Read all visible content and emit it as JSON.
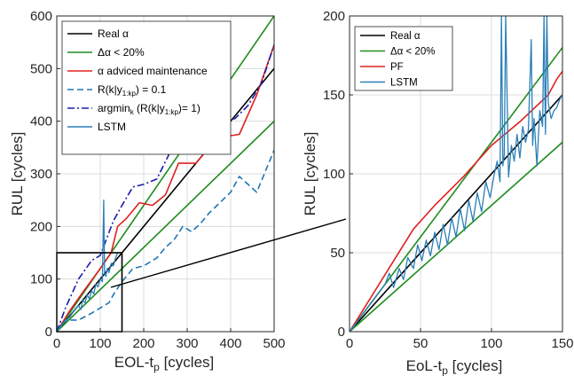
{
  "chart_data": [
    {
      "type": "line",
      "xlabel": "EOL-t",
      "xlabel_sub": "p",
      "xlabel_unit": " [cycles]",
      "ylabel": "RUL [cycles]",
      "xlim": [
        0,
        500
      ],
      "ylim": [
        0,
        600
      ],
      "xticks": [
        "0",
        "100",
        "200",
        "300",
        "400",
        "500"
      ],
      "yticks": [
        "0",
        "100",
        "200",
        "300",
        "400",
        "500",
        "600"
      ],
      "grid": true,
      "legend_position": "top-left",
      "zoom_box": {
        "x": [
          0,
          150
        ],
        "y": [
          0,
          150
        ]
      },
      "series": [
        {
          "name": "Real α",
          "color": "#000000",
          "style": "solid",
          "x": [
            0,
            500
          ],
          "y": [
            0,
            500
          ]
        },
        {
          "name": "Δα < 20%",
          "color": "#1e8c1e",
          "style": "solid",
          "x": [
            0,
            500
          ],
          "y": [
            0,
            600
          ]
        },
        {
          "name": "",
          "color": "#1e8c1e",
          "style": "solid",
          "x": [
            0,
            500
          ],
          "y": [
            0,
            400
          ]
        },
        {
          "name": "α adviced maintenance",
          "color": "#e0201e",
          "style": "solid",
          "x": [
            0,
            30,
            60,
            100,
            125,
            140,
            160,
            190,
            220,
            250,
            280,
            320,
            350,
            380,
            420,
            460,
            500
          ],
          "y": [
            0,
            40,
            75,
            120,
            150,
            200,
            215,
            245,
            240,
            260,
            320,
            320,
            350,
            370,
            375,
            450,
            545
          ]
        },
        {
          "name": "R(k|y",
          "name_sub": "1:kp",
          "name_tail": ") = 0.1",
          "color": "#1f77b4",
          "style": "dashed",
          "x": [
            0,
            20,
            50,
            80,
            100,
            110,
            120,
            130,
            150,
            175,
            200,
            230,
            250,
            270,
            290,
            310,
            330,
            350,
            375,
            400,
            420,
            440,
            460,
            480,
            500
          ],
          "y": [
            0,
            22,
            22,
            35,
            45,
            50,
            55,
            70,
            95,
            120,
            125,
            140,
            160,
            175,
            200,
            190,
            205,
            225,
            245,
            265,
            295,
            280,
            265,
            305,
            345
          ]
        },
        {
          "name": "argmin",
          "name_sub": "k",
          "name_tail": " (R(k|y",
          "name_sub2": "1:kp",
          "name_tail2": ")= 1)",
          "color": "#1a1aa8",
          "style": "dashdot",
          "x": [
            0,
            20,
            50,
            80,
            100,
            130,
            150,
            175,
            200,
            230,
            260,
            290,
            320,
            350,
            380,
            410,
            440,
            470,
            500
          ],
          "y": [
            0,
            45,
            100,
            135,
            145,
            210,
            240,
            275,
            280,
            290,
            340,
            375,
            370,
            385,
            400,
            405,
            430,
            470,
            545
          ]
        },
        {
          "name": "LSTM",
          "color": "#2b7fb8",
          "style": "solid",
          "x": [
            0,
            10,
            20,
            30,
            40,
            50,
            55,
            60,
            65,
            70,
            75,
            80,
            85,
            90,
            95,
            100,
            105,
            108,
            110,
            113,
            116,
            120,
            125,
            130,
            135,
            140
          ],
          "y": [
            0,
            12,
            20,
            28,
            40,
            50,
            42,
            60,
            55,
            70,
            62,
            78,
            72,
            90,
            85,
            100,
            95,
            250,
            110,
            105,
            120,
            112,
            130,
            125,
            140,
            150
          ]
        }
      ]
    },
    {
      "type": "line",
      "xlabel": "EoL-t",
      "xlabel_sub": "p",
      "xlabel_unit": " [cycles]",
      "ylabel": "RUL [cycles]",
      "xlim": [
        0,
        150
      ],
      "ylim": [
        0,
        200
      ],
      "xticks": [
        "0",
        "50",
        "100",
        "150"
      ],
      "yticks": [
        "0",
        "50",
        "100",
        "150",
        "200"
      ],
      "grid": true,
      "legend_position": "top-left",
      "series": [
        {
          "name": "Real α",
          "color": "#000000",
          "style": "solid",
          "x": [
            0,
            150
          ],
          "y": [
            0,
            150
          ]
        },
        {
          "name": "Δα < 20%",
          "color": "#1e8c1e",
          "style": "solid",
          "x": [
            0,
            150
          ],
          "y": [
            0,
            180
          ]
        },
        {
          "name": "",
          "color": "#1e8c1e",
          "style": "solid",
          "x": [
            0,
            150
          ],
          "y": [
            0,
            120
          ]
        },
        {
          "name": "PF",
          "color": "#e0201e",
          "style": "solid",
          "x": [
            0,
            45,
            60,
            80,
            100,
            120,
            140,
            146,
            150
          ],
          "y": [
            0,
            65,
            80,
            98,
            118,
            133,
            150,
            160,
            165
          ]
        },
        {
          "name": "LSTM",
          "color": "#2b7fb8",
          "style": "solid",
          "x": [
            0,
            5,
            10,
            15,
            20,
            25,
            28,
            31,
            35,
            38,
            41,
            45,
            48,
            51,
            54,
            57,
            60,
            63,
            66,
            69,
            72,
            75,
            78,
            81,
            84,
            87,
            90,
            93,
            96,
            99,
            102,
            104,
            106,
            107,
            108,
            109,
            110,
            112,
            114,
            116,
            118,
            120,
            122,
            124,
            126,
            128,
            129,
            130,
            132,
            134,
            136,
            137,
            138,
            139,
            140,
            142,
            144,
            146,
            148,
            150
          ],
          "y": [
            0,
            6,
            12,
            18,
            24,
            30,
            37,
            28,
            40,
            33,
            47,
            40,
            55,
            45,
            58,
            48,
            63,
            52,
            68,
            55,
            72,
            60,
            78,
            64,
            83,
            70,
            88,
            76,
            95,
            85,
            100,
            108,
            95,
            200,
            105,
            112,
            200,
            98,
            118,
            108,
            125,
            110,
            130,
            120,
            128,
            185,
            118,
            135,
            105,
            140,
            130,
            200,
            125,
            200,
            145,
            135,
            140,
            142,
            147,
            150
          ]
        }
      ]
    }
  ]
}
